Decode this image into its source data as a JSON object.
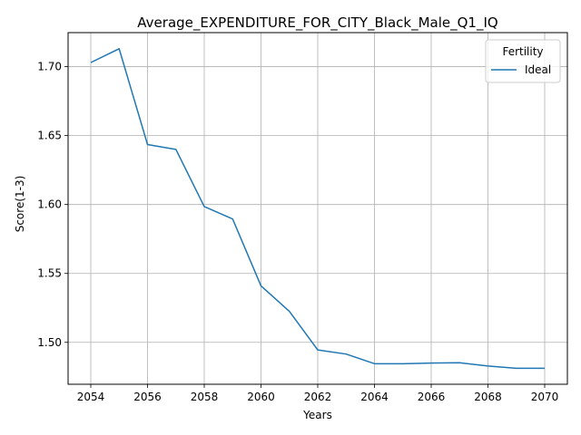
{
  "chart_data": {
    "type": "line",
    "title": "Average_EXPENDITURE_FOR_CITY_Black_Male_Q1_IQ",
    "xlabel": "Years",
    "ylabel": "Score(1-3)",
    "x": [
      2054,
      2055,
      2056,
      2057,
      2058,
      2059,
      2060,
      2061,
      2062,
      2063,
      2064,
      2065,
      2066,
      2067,
      2068,
      2069,
      2070
    ],
    "series": [
      {
        "name": "Ideal",
        "color": "#1f77b4",
        "values": [
          1.703,
          1.713,
          1.6435,
          1.64,
          1.5985,
          1.5895,
          1.541,
          1.5225,
          1.4945,
          1.4915,
          1.4845,
          1.4845,
          1.485,
          1.4852,
          1.4828,
          1.4812,
          1.4812
        ]
      }
    ],
    "xlim": [
      2053.2,
      2070.8
    ],
    "ylim": [
      1.4696,
      1.7247
    ],
    "xticks": [
      2054,
      2056,
      2058,
      2060,
      2062,
      2064,
      2066,
      2068,
      2070
    ],
    "yticks": [
      1.5,
      1.55,
      1.6,
      1.65,
      1.7
    ],
    "ytick_labels": [
      "1.50",
      "1.55",
      "1.60",
      "1.65",
      "1.70"
    ],
    "grid": true,
    "legend": {
      "title": "Fertility",
      "placement": "top-right",
      "entries": [
        "Ideal"
      ]
    }
  }
}
